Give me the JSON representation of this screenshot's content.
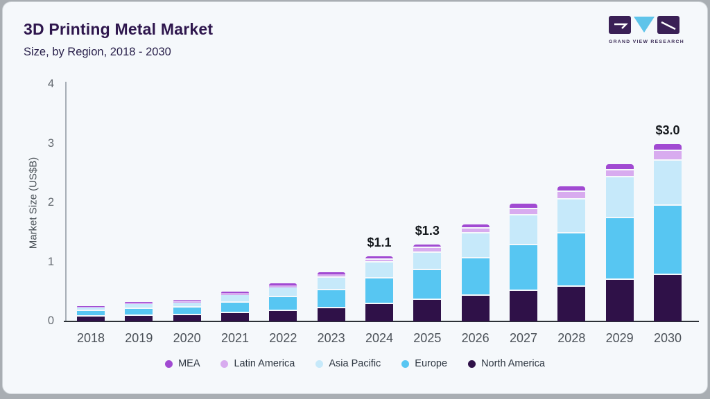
{
  "header": {
    "title": "3D Printing Metal Market",
    "subtitle": "Size, by Region, 2018 - 2030",
    "logo_text": "GRAND VIEW RESEARCH"
  },
  "chart_data": {
    "type": "bar",
    "stacked": true,
    "title": "3D Printing Metal Market",
    "subtitle": "Size, by Region, 2018 - 2030",
    "xlabel": "",
    "ylabel": "Market Size (US$B)",
    "ylim": [
      0,
      4
    ],
    "yticks": [
      0,
      1,
      2,
      3,
      4
    ],
    "grid": false,
    "legend_position": "bottom",
    "categories": [
      "2018",
      "2019",
      "2020",
      "2021",
      "2022",
      "2023",
      "2024",
      "2025",
      "2026",
      "2027",
      "2028",
      "2029",
      "2030"
    ],
    "series": [
      {
        "name": "North America",
        "color": "#2f1148",
        "values": [
          0.08,
          0.09,
          0.1,
          0.14,
          0.17,
          0.22,
          0.29,
          0.36,
          0.43,
          0.51,
          0.59,
          0.7,
          0.78
        ]
      },
      {
        "name": "Europe",
        "color": "#57c6f2",
        "values": [
          0.09,
          0.12,
          0.13,
          0.18,
          0.24,
          0.31,
          0.43,
          0.5,
          0.63,
          0.78,
          0.89,
          1.04,
          1.17
        ]
      },
      {
        "name": "Asia Pacific",
        "color": "#c6e9fa",
        "values": [
          0.06,
          0.08,
          0.09,
          0.13,
          0.16,
          0.21,
          0.27,
          0.3,
          0.42,
          0.5,
          0.58,
          0.69,
          0.76
        ]
      },
      {
        "name": "Latin America",
        "color": "#d8abef",
        "values": [
          0.015,
          0.02,
          0.025,
          0.03,
          0.04,
          0.05,
          0.055,
          0.08,
          0.09,
          0.11,
          0.125,
          0.12,
          0.165
        ]
      },
      {
        "name": "MEA",
        "color": "#a14ad2",
        "values": [
          0.01,
          0.015,
          0.02,
          0.025,
          0.03,
          0.04,
          0.055,
          0.06,
          0.07,
          0.085,
          0.1,
          0.1,
          0.125
        ]
      }
    ],
    "totals": [
      0.25,
      0.33,
      0.37,
      0.51,
      0.64,
      0.83,
      1.1,
      1.3,
      1.64,
      1.99,
      2.29,
      2.65,
      3.0
    ],
    "value_labels": {
      "2024": "$1.1",
      "2025": "$1.3",
      "2030": "$3.0"
    },
    "legend_order": [
      "MEA",
      "Latin America",
      "Asia Pacific",
      "Europe",
      "North America"
    ]
  }
}
